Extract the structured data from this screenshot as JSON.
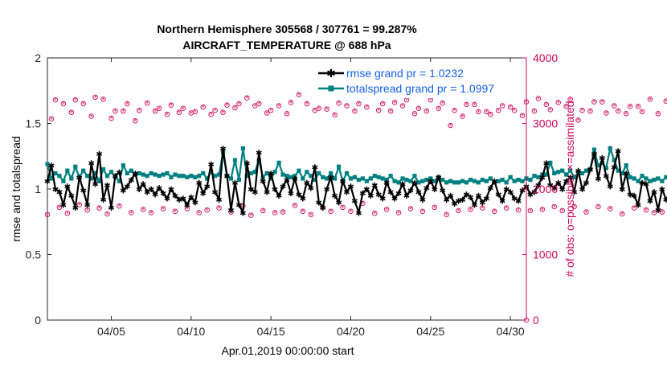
{
  "chart_data": {
    "type": "line",
    "title_line1": "Northern Hemisphere 305568 / 307761 = 99.287%",
    "title_line2": "AIRCRAFT_TEMPERATURE @ 688 hPa",
    "xlabel": "Apr.01,2019 00:00:00 start",
    "ylabel_left": "rmse and totalspread",
    "ylabel_right": "# of obs: o=possible; ×=assimilated",
    "x_start_day": 1.0,
    "x_step_days": 0.25,
    "xlim": [
      1,
      31
    ],
    "xticks": [
      5,
      10,
      15,
      20,
      25,
      30
    ],
    "xtick_labels": [
      "04/05",
      "04/10",
      "04/15",
      "04/20",
      "04/25",
      "04/30"
    ],
    "ylim_left": [
      0,
      2
    ],
    "yticks_left": [
      0,
      0.5,
      1,
      1.5,
      2
    ],
    "ytick_labels_left": [
      "0",
      "0.5",
      "1",
      "1.5",
      "2"
    ],
    "ylim_right": [
      0,
      4000
    ],
    "yticks_right": [
      0,
      1000,
      2000,
      3000,
      4000
    ],
    "ytick_labels_right": [
      "0",
      "1000",
      "2000",
      "3000",
      "4000"
    ],
    "legend": {
      "position": "top-right",
      "entries": [
        "rmse grand pr = 1.0232",
        "totalspread grand pr = 1.0997"
      ]
    },
    "colors": {
      "rmse": "#000000",
      "totalspread": "#008080",
      "obs": "#cc0a5a",
      "legend_text": "#1560e6"
    },
    "series": [
      {
        "name": "rmse",
        "values": [
          1.06,
          1.18,
          1.0,
          0.98,
          0.88,
          1.02,
          0.95,
          0.86,
          1.09,
          0.99,
          0.88,
          1.2,
          1.04,
          1.27,
          0.92,
          1.03,
          0.86,
          1.1,
          1.13,
          0.99,
          1.02,
          1.07,
          1.12,
          1.0,
          1.04,
          0.98,
          1.0,
          0.96,
          1.01,
          0.97,
          0.93,
          1.0,
          0.95,
          0.92,
          0.93,
          0.88,
          0.94,
          0.9,
          1.05,
          0.97,
          1.02,
          1.19,
          0.98,
          0.92,
          1.31,
          1.1,
          0.84,
          1.05,
          0.88,
          0.82,
          1.2,
          1.0,
          0.98,
          1.28,
          1.06,
          0.98,
          1.12,
          1.0,
          0.95,
          1.02,
          1.07,
          0.97,
          1.08,
          0.96,
          0.93,
          1.05,
          1.01,
          1.17,
          0.9,
          0.86,
          1.0,
          1.09,
          0.95,
          0.9,
          1.06,
          0.98,
          1.02,
          0.91,
          0.82,
          0.97,
          1.0,
          0.95,
          1.03,
          0.96,
          0.93,
          1.05,
          0.98,
          0.93,
          0.97,
          1.04,
          0.95,
          0.99,
          1.05,
          0.98,
          0.92,
          1.01,
          1.06,
          1.0,
          1.09,
          0.99,
          0.92,
          0.95,
          0.89,
          0.91,
          0.92,
          0.96,
          0.94,
          0.88,
          0.95,
          0.9,
          0.93,
          1.01,
          1.06,
          0.96,
          0.91,
          1.0,
          0.98,
          0.93,
          0.91,
          0.99,
          1.02,
          0.96,
          0.98,
          1.03,
          1.09,
          1.2,
          1.03,
          1.01,
          1.05,
          1.0,
          1.06,
          1.09,
          0.98,
          1.14,
          1.0,
          1.05,
          1.15,
          1.27,
          1.08,
          1.24,
          1.1,
          1.02,
          1.17,
          1.29,
          1.0,
          1.12,
          0.96,
          0.95,
          0.88,
          1.05,
          1.04,
          0.91,
          0.98,
          0.84,
          1.0,
          0.92,
          0.96,
          0.98,
          0.85,
          0.84
        ]
      },
      {
        "name": "totalspread",
        "values": [
          1.19,
          1.08,
          1.12,
          1.1,
          1.06,
          1.14,
          1.08,
          1.17,
          1.09,
          1.14,
          1.1,
          1.08,
          1.12,
          1.06,
          1.15,
          1.1,
          1.13,
          1.09,
          1.06,
          1.18,
          1.12,
          1.14,
          1.11,
          1.12,
          1.11,
          1.1,
          1.12,
          1.11,
          1.1,
          1.11,
          1.12,
          1.09,
          1.11,
          1.1,
          1.1,
          1.09,
          1.1,
          1.09,
          1.1,
          1.12,
          1.08,
          1.13,
          1.1,
          1.11,
          1.28,
          1.1,
          1.08,
          1.22,
          1.07,
          1.31,
          1.1,
          1.12,
          1.13,
          1.22,
          1.09,
          1.12,
          1.08,
          1.13,
          1.2,
          1.11,
          1.1,
          1.09,
          1.1,
          1.14,
          1.08,
          1.13,
          1.1,
          1.07,
          1.12,
          1.09,
          1.08,
          1.12,
          1.08,
          1.17,
          1.06,
          1.12,
          1.08,
          1.09,
          1.07,
          1.08,
          1.06,
          1.08,
          1.1,
          1.09,
          1.08,
          1.07,
          1.1,
          1.06,
          1.05,
          1.08,
          1.07,
          1.06,
          1.1,
          1.05,
          1.06,
          1.07,
          1.08,
          1.06,
          1.09,
          1.07,
          1.05,
          1.06,
          1.05,
          1.05,
          1.06,
          1.05,
          1.07,
          1.06,
          1.05,
          1.07,
          1.06,
          1.08,
          1.05,
          1.06,
          1.07,
          1.05,
          1.09,
          1.06,
          1.07,
          1.06,
          1.08,
          1.07,
          1.1,
          1.09,
          1.11,
          1.11,
          1.2,
          1.12,
          1.13,
          1.14,
          1.11,
          1.14,
          1.09,
          1.12,
          1.12,
          1.14,
          1.15,
          1.3,
          1.18,
          1.2,
          1.16,
          1.31,
          1.22,
          1.14,
          1.12,
          1.18,
          1.09,
          1.08,
          1.06,
          1.1,
          1.08,
          1.06,
          1.07,
          1.08,
          1.06,
          1.09,
          1.05,
          1.07,
          1.05,
          1.04
        ]
      }
    ],
    "obs_possible": [
      1610,
      3070,
      3360,
      1720,
      3300,
      1630,
      3170,
      3360,
      1760,
      3300,
      1680,
      3110,
      3400,
      1710,
      3370,
      1620,
      3080,
      3190,
      1740,
      3190,
      3300,
      1640,
      3040,
      3200,
      1690,
      3310,
      1640,
      3190,
      3230,
      1700,
      3140,
      3280,
      1660,
      3170,
      3230,
      1700,
      3160,
      3180,
      1640,
      3250,
      1680,
      3140,
      3200,
      1710,
      3170,
      3280,
      1650,
      3240,
      3300,
      1740,
      3390,
      1600,
      3270,
      3300,
      1670,
      3160,
      3200,
      1640,
      3270,
      1650,
      3150,
      3320,
      1750,
      3440,
      1660,
      3300,
      1610,
      3200,
      3230,
      1720,
      3220,
      1660,
      3130,
      3310,
      1720,
      3270,
      1660,
      3190,
      3300,
      1780,
      3250,
      3430,
      1630,
      3200,
      3300,
      1690,
      3190,
      3320,
      1640,
      3270,
      3360,
      1700,
      3150,
      3230,
      1660,
      3190,
      3360,
      1720,
      3230,
      3310,
      1610,
      2970,
      3200,
      1670,
      3110,
      3290,
      1690,
      3290,
      3180,
      1710,
      3180,
      3140,
      1660,
      3200,
      3270,
      1710,
      3250,
      3200,
      1680,
      3120,
      3330,
      1670,
      3190,
      3380,
      1690,
      3290,
      3210,
      1730,
      3320,
      1670,
      3260,
      3370,
      1730,
      3050,
      3200,
      1650,
      3190,
      3330,
      1730,
      3330,
      3160,
      1700,
      3270,
      3190,
      1620,
      3150,
      3260,
      1710,
      3260,
      3180,
      1680,
      3370,
      1640,
      3150,
      1650,
      3340,
      1990,
      3080,
      3380,
      1620,
      3400,
      1960
    ]
  }
}
